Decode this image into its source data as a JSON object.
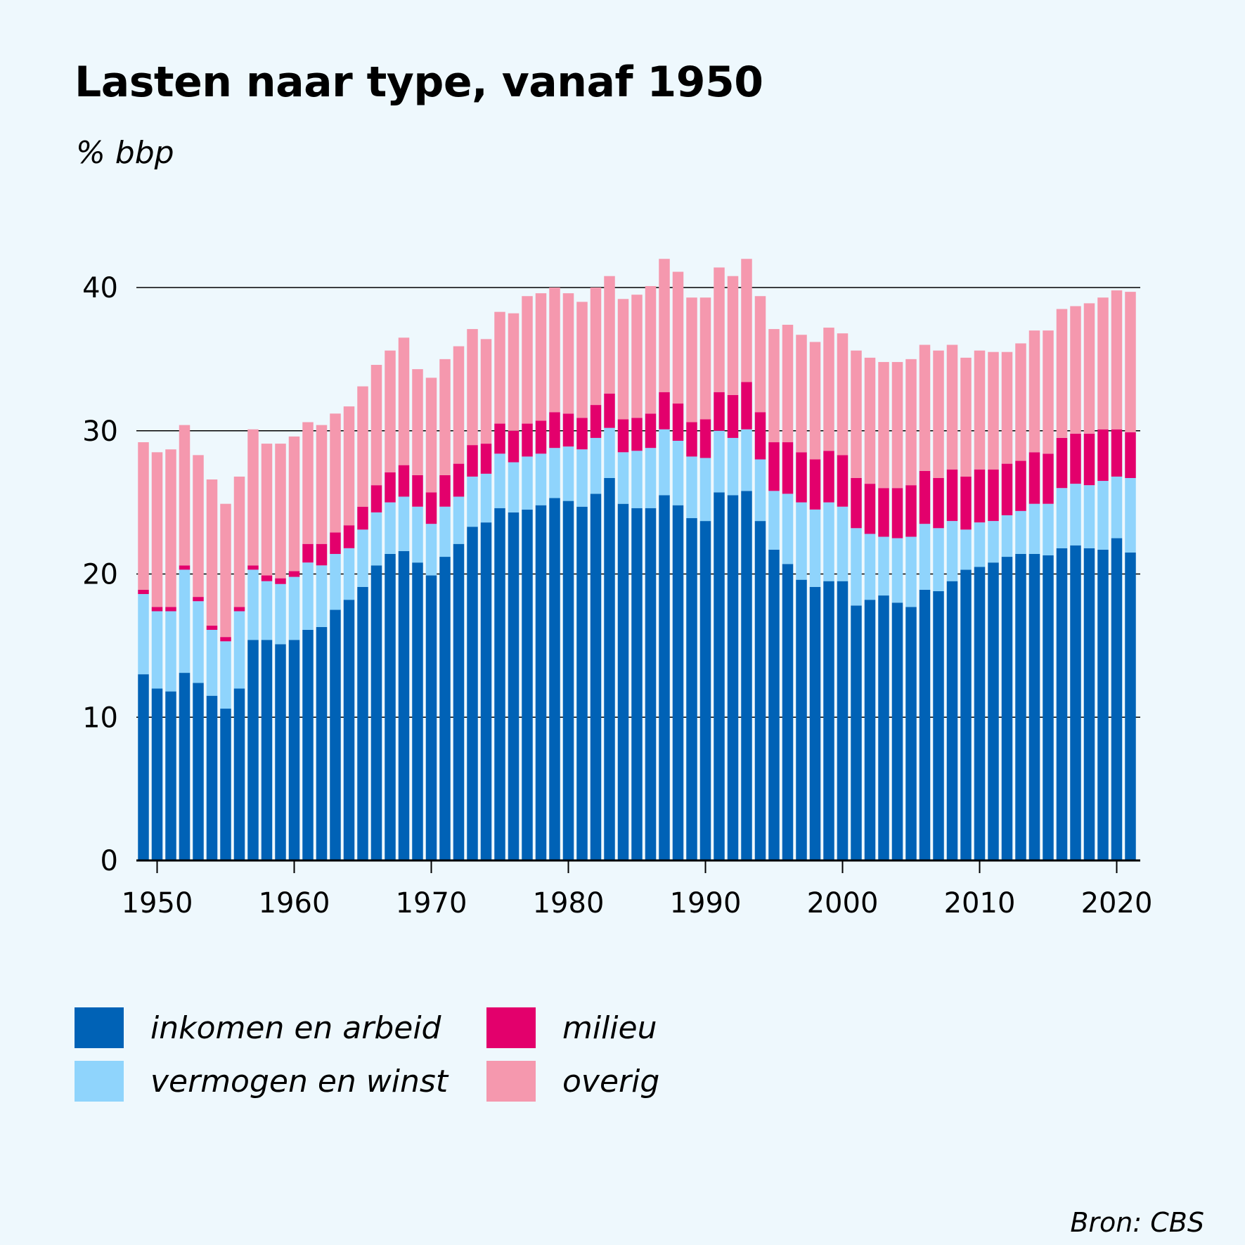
{
  "chart_data": {
    "type": "bar",
    "stacked": true,
    "title": "Lasten naar type, vanaf 1950",
    "ylabel": "% bbp",
    "ylim": [
      0,
      40
    ],
    "yticks": [
      "0",
      "10",
      "20",
      "30",
      "40"
    ],
    "xticks": [
      "1950",
      "1960",
      "1970",
      "1980",
      "1990",
      "2000",
      "2010",
      "2020"
    ],
    "x": [
      1949,
      1950,
      1951,
      1952,
      1953,
      1954,
      1955,
      1956,
      1957,
      1958,
      1959,
      1960,
      1961,
      1962,
      1963,
      1964,
      1965,
      1966,
      1967,
      1968,
      1969,
      1970,
      1971,
      1972,
      1973,
      1974,
      1975,
      1976,
      1977,
      1978,
      1979,
      1980,
      1981,
      1982,
      1983,
      1984,
      1985,
      1986,
      1987,
      1988,
      1989,
      1990,
      1991,
      1992,
      1993,
      1994,
      1995,
      1996,
      1997,
      1998,
      1999,
      2000,
      2001,
      2002,
      2003,
      2004,
      2005,
      2006,
      2007,
      2008,
      2009,
      2010,
      2011,
      2012,
      2013,
      2014,
      2015,
      2016,
      2017,
      2018,
      2019,
      2020,
      2021
    ],
    "series": [
      {
        "name": "inkomen en arbeid",
        "color": "#0062b6",
        "values": [
          13.0,
          12.0,
          11.8,
          13.1,
          12.4,
          11.5,
          10.6,
          12.0,
          15.4,
          15.4,
          15.1,
          15.4,
          16.1,
          16.3,
          17.5,
          18.2,
          19.1,
          20.6,
          21.4,
          21.6,
          20.8,
          19.9,
          21.2,
          22.1,
          23.3,
          23.6,
          24.6,
          24.3,
          24.5,
          24.8,
          25.3,
          25.1,
          24.7,
          25.6,
          26.7,
          24.9,
          24.6,
          24.6,
          25.5,
          24.8,
          23.9,
          23.7,
          25.7,
          25.5,
          25.8,
          23.7,
          21.7,
          20.7,
          19.6,
          19.1,
          19.5,
          19.5,
          17.8,
          18.2,
          18.5,
          18.0,
          17.7,
          18.9,
          18.8,
          19.5,
          20.3,
          20.5,
          20.8,
          21.2,
          21.4,
          21.4,
          21.3,
          21.8,
          22.0,
          21.8,
          21.7,
          22.5,
          21.5
        ]
      },
      {
        "name": "vermogen en winst",
        "color": "#8fd4fc",
        "values": [
          5.6,
          5.4,
          5.6,
          7.2,
          5.7,
          4.6,
          4.7,
          5.4,
          4.9,
          4.1,
          4.2,
          4.4,
          4.7,
          4.3,
          3.9,
          3.6,
          4.0,
          3.7,
          3.6,
          3.8,
          3.9,
          3.6,
          3.5,
          3.3,
          3.5,
          3.4,
          3.8,
          3.5,
          3.7,
          3.6,
          3.5,
          3.8,
          4.0,
          3.9,
          3.5,
          3.6,
          4.0,
          4.2,
          4.6,
          4.5,
          4.3,
          4.4,
          4.3,
          4.0,
          4.3,
          4.3,
          4.1,
          4.9,
          5.4,
          5.4,
          5.5,
          5.2,
          5.4,
          4.6,
          4.1,
          4.5,
          4.9,
          4.6,
          4.4,
          4.2,
          2.8,
          3.1,
          2.9,
          2.9,
          3.0,
          3.5,
          3.6,
          4.2,
          4.3,
          4.4,
          4.8,
          4.3,
          5.2
        ]
      },
      {
        "name": "milieu",
        "color": "#e3006c",
        "values": [
          0.3,
          0.3,
          0.3,
          0.3,
          0.3,
          0.3,
          0.3,
          0.3,
          0.3,
          0.4,
          0.4,
          0.4,
          1.3,
          1.5,
          1.5,
          1.6,
          1.6,
          1.9,
          2.1,
          2.2,
          2.2,
          2.2,
          2.2,
          2.3,
          2.2,
          2.1,
          2.1,
          2.2,
          2.3,
          2.3,
          2.5,
          2.3,
          2.2,
          2.3,
          2.4,
          2.3,
          2.3,
          2.4,
          2.6,
          2.6,
          2.4,
          2.7,
          2.7,
          3.0,
          3.3,
          3.3,
          3.4,
          3.6,
          3.5,
          3.5,
          3.6,
          3.6,
          3.5,
          3.5,
          3.4,
          3.5,
          3.6,
          3.7,
          3.5,
          3.6,
          3.7,
          3.7,
          3.6,
          3.6,
          3.5,
          3.6,
          3.5,
          3.5,
          3.5,
          3.6,
          3.6,
          3.3,
          3.2
        ]
      },
      {
        "name": "overig",
        "color": "#f598ae",
        "values": [
          10.3,
          10.8,
          11.0,
          9.8,
          9.9,
          10.2,
          9.3,
          9.1,
          9.5,
          9.2,
          9.4,
          9.4,
          8.5,
          8.3,
          8.3,
          8.3,
          8.4,
          8.4,
          8.5,
          8.9,
          7.4,
          8.0,
          8.1,
          8.2,
          8.1,
          7.3,
          7.8,
          8.2,
          8.9,
          8.9,
          8.7,
          8.4,
          8.1,
          8.2,
          8.2,
          8.4,
          8.6,
          8.9,
          9.3,
          9.2,
          8.7,
          8.5,
          8.7,
          8.3,
          8.6,
          8.1,
          7.9,
          8.2,
          8.2,
          8.2,
          8.6,
          8.5,
          8.9,
          8.8,
          8.8,
          8.8,
          8.8,
          8.8,
          8.9,
          8.7,
          8.3,
          8.3,
          8.2,
          7.8,
          8.2,
          8.5,
          8.6,
          9.0,
          8.9,
          9.1,
          9.2,
          9.7,
          9.8
        ]
      }
    ],
    "legend": [
      "inkomen en arbeid",
      "vermogen en winst",
      "milieu",
      "overig"
    ],
    "source": "Bron: CBS"
  }
}
